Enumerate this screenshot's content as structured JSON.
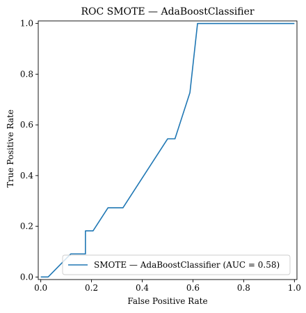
{
  "chart_data": {
    "type": "line",
    "title": "ROC SMOTE — AdaBoostClassifier",
    "xlabel": "False Positive Rate",
    "ylabel": "True Positive Rate",
    "xlim": [
      0,
      1
    ],
    "ylim": [
      0,
      1
    ],
    "xticks": [
      "0.0",
      "0.2",
      "0.4",
      "0.6",
      "0.8",
      "1.0"
    ],
    "yticks": [
      "0.0",
      "0.2",
      "0.4",
      "0.6",
      "0.8",
      "1.0"
    ],
    "grid": false,
    "legend_position": "bottom-right",
    "series": [
      {
        "name": "SMOTE — AdaBoostClassifier (AUC = 0.58)",
        "color": "#1f77b4",
        "x": [
          0.0,
          0.029,
          0.118,
          0.176,
          0.176,
          0.206,
          0.265,
          0.324,
          0.5,
          0.529,
          0.588,
          0.618,
          1.0
        ],
        "y": [
          0.0,
          0.0,
          0.091,
          0.091,
          0.182,
          0.182,
          0.273,
          0.273,
          0.545,
          0.545,
          0.727,
          1.0,
          1.0
        ]
      }
    ]
  }
}
